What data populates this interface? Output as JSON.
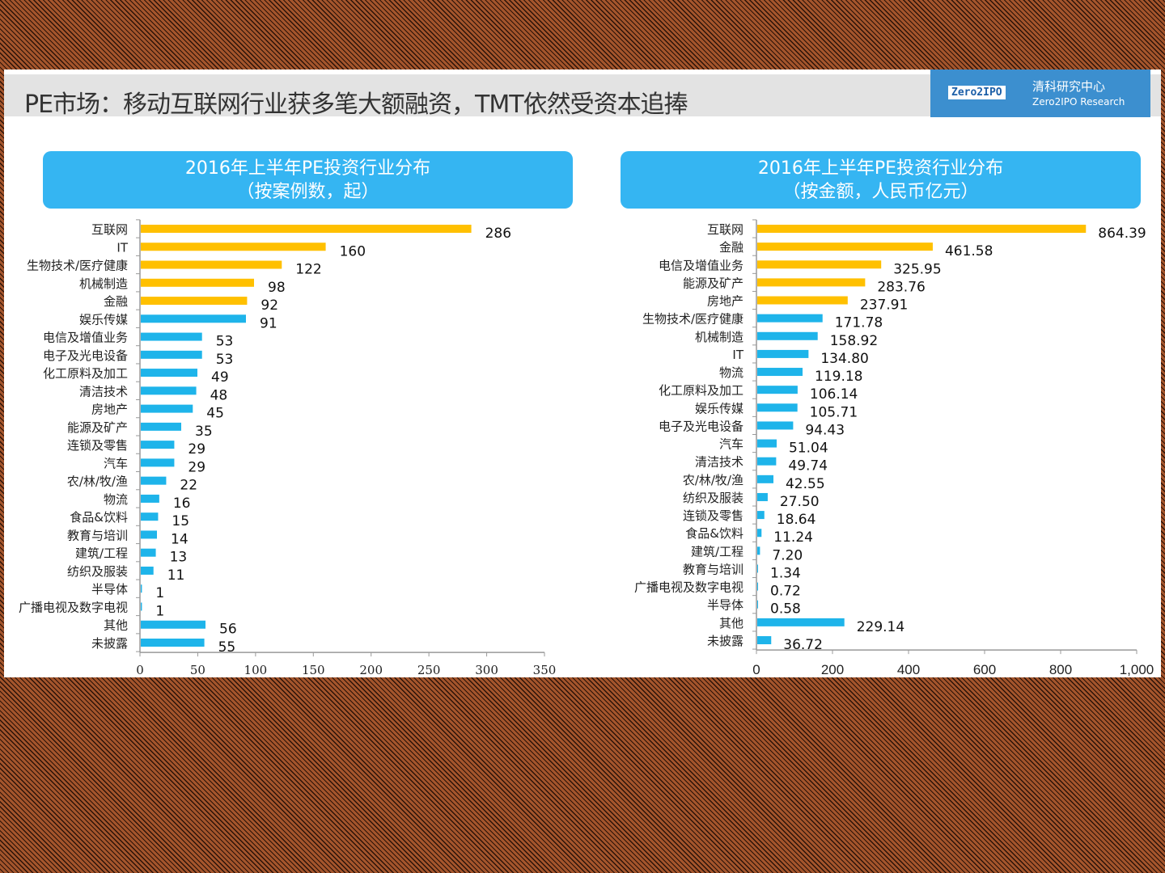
{
  "slide_title": "PE市场：移动互联网行业获多笔大额融资，TMT依然受资本追捧",
  "logo": {
    "mark": "Zero2IPO",
    "cn": "清科研究中心",
    "en": "Zero2IPO Research"
  },
  "colors": {
    "highlight": "#ffc000",
    "normal": "#1eb4ea",
    "banner": "#35b5f2"
  },
  "chart_data": [
    {
      "type": "bar",
      "orientation": "horizontal",
      "title": "2016年上半年PE投资行业分布",
      "subtitle": "（按案例数，起）",
      "categories": [
        "互联网",
        "IT",
        "生物技术/医疗健康",
        "机械制造",
        "金融",
        "娱乐传媒",
        "电信及增值业务",
        "电子及光电设备",
        "化工原料及加工",
        "清洁技术",
        "房地产",
        "能源及矿产",
        "连锁及零售",
        "汽车",
        "农/林/牧/渔",
        "物流",
        "食品&饮料",
        "教育与培训",
        "建筑/工程",
        "纺织及服装",
        "半导体",
        "广播电视及数字电视",
        "其他",
        "未披露"
      ],
      "values": [
        286,
        160,
        122,
        98,
        92,
        91,
        53,
        53,
        49,
        48,
        45,
        35,
        29,
        29,
        22,
        16,
        15,
        14,
        13,
        11,
        1,
        1,
        56,
        55
      ],
      "value_labels": [
        "286",
        "160",
        "122",
        "98",
        "92",
        "91",
        "53",
        "53",
        "49",
        "48",
        "45",
        "35",
        "29",
        "29",
        "22",
        "16",
        "15",
        "14",
        "13",
        "11",
        "1",
        "1",
        "56",
        "55"
      ],
      "highlighted_count": 5,
      "xlim": [
        0,
        350
      ],
      "xticks": [
        "0",
        "50",
        "100",
        "150",
        "200",
        "250",
        "300",
        "350"
      ],
      "grid": false
    },
    {
      "type": "bar",
      "orientation": "horizontal",
      "title": "2016年上半年PE投资行业分布",
      "subtitle": "（按金额，人民币亿元）",
      "categories": [
        "互联网",
        "金融",
        "电信及增值业务",
        "能源及矿产",
        "房地产",
        "生物技术/医疗健康",
        "机械制造",
        "IT",
        "物流",
        "化工原料及加工",
        "娱乐传媒",
        "电子及光电设备",
        "汽车",
        "清洁技术",
        "农/林/牧/渔",
        "纺织及服装",
        "连锁及零售",
        "食品&饮料",
        "建筑/工程",
        "教育与培训",
        "广播电视及数字电视",
        "半导体",
        "其他",
        "未披露"
      ],
      "values": [
        864.39,
        461.58,
        325.95,
        283.76,
        237.91,
        171.78,
        158.92,
        134.8,
        119.18,
        106.14,
        105.71,
        94.43,
        51.04,
        49.74,
        42.55,
        27.5,
        18.64,
        11.24,
        7.2,
        1.34,
        0.72,
        0.58,
        229.14,
        36.72
      ],
      "value_labels": [
        "864.39",
        "461.58",
        "325.95",
        "283.76",
        "237.91",
        "171.78",
        "158.92",
        "134.80",
        "119.18",
        "106.14",
        "105.71",
        "94.43",
        "51.04",
        "49.74",
        "42.55",
        "27.50",
        "18.64",
        "11.24",
        "7.20",
        "1.34",
        "0.72",
        "0.58",
        "229.14",
        "36.72"
      ],
      "highlighted_count": 5,
      "xlim": [
        0,
        1000
      ],
      "xticks": [
        "0",
        "200",
        "400",
        "600",
        "800",
        "1,000"
      ],
      "grid": false
    }
  ]
}
